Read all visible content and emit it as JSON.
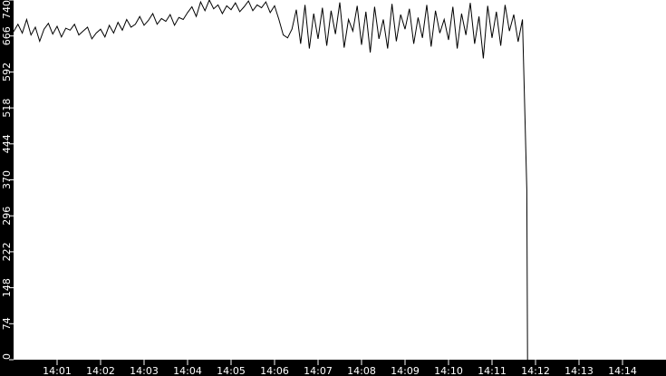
{
  "chart_data": {
    "type": "line",
    "title": "",
    "xlabel": "",
    "ylabel": "",
    "ylim": [
      0,
      740
    ],
    "xlim": [
      "14:00:00",
      "14:15:00"
    ],
    "grid": false,
    "colors": {
      "background": "#000000",
      "plot": "#ffffff",
      "line": "#000000",
      "axis_text": "#ffffff"
    },
    "y_ticks": [
      "0",
      "74",
      "148",
      "222",
      "296",
      "370",
      "444",
      "518",
      "592",
      "666",
      "740"
    ],
    "x_ticks": [
      "14:01",
      "14:02",
      "14:03",
      "14:04",
      "14:05",
      "14:06",
      "14:07",
      "14:08",
      "14:09",
      "14:10",
      "14:11",
      "14:12",
      "14:13",
      "14:14"
    ],
    "series": [
      {
        "x": [
          "14:00:00",
          "14:00:06",
          "14:00:12",
          "14:00:18",
          "14:00:24",
          "14:00:30",
          "14:00:36",
          "14:00:42",
          "14:00:48",
          "14:00:54",
          "14:01:00",
          "14:01:06",
          "14:01:12",
          "14:01:18",
          "14:01:24",
          "14:01:30",
          "14:01:36",
          "14:01:42",
          "14:01:48",
          "14:01:54",
          "14:02:00",
          "14:02:06",
          "14:02:12",
          "14:02:18",
          "14:02:24",
          "14:02:30",
          "14:02:36",
          "14:02:42",
          "14:02:48",
          "14:02:54",
          "14:03:00",
          "14:03:06",
          "14:03:12",
          "14:03:18",
          "14:03:24",
          "14:03:30",
          "14:03:36",
          "14:03:42",
          "14:03:48",
          "14:03:54",
          "14:04:00",
          "14:04:06",
          "14:04:12",
          "14:04:18",
          "14:04:24",
          "14:04:30",
          "14:04:36",
          "14:04:42",
          "14:04:48",
          "14:04:54",
          "14:05:00",
          "14:05:06",
          "14:05:12",
          "14:05:18",
          "14:05:24",
          "14:05:30",
          "14:05:36",
          "14:05:42",
          "14:05:48",
          "14:05:54",
          "14:06:00",
          "14:06:06",
          "14:06:12",
          "14:06:18",
          "14:06:24",
          "14:06:30",
          "14:06:36",
          "14:06:42",
          "14:06:48",
          "14:06:54",
          "14:07:00",
          "14:07:06",
          "14:07:12",
          "14:07:18",
          "14:07:24",
          "14:07:30",
          "14:07:36",
          "14:07:42",
          "14:07:48",
          "14:07:54",
          "14:08:00",
          "14:08:06",
          "14:08:12",
          "14:08:18",
          "14:08:24",
          "14:08:30",
          "14:08:36",
          "14:08:42",
          "14:08:48",
          "14:08:54",
          "14:09:00",
          "14:09:06",
          "14:09:12",
          "14:09:18",
          "14:09:24",
          "14:09:30",
          "14:09:36",
          "14:09:42",
          "14:09:48",
          "14:09:54",
          "14:10:00",
          "14:10:06",
          "14:10:12",
          "14:10:18",
          "14:10:24",
          "14:10:30",
          "14:10:36",
          "14:10:42",
          "14:10:48",
          "14:10:54",
          "14:11:00",
          "14:11:06",
          "14:11:12",
          "14:11:18",
          "14:11:24",
          "14:11:30",
          "14:11:36",
          "14:11:42",
          "14:11:48",
          "14:11:49"
        ],
        "values": [
          675,
          690,
          672,
          700,
          668,
          684,
          655,
          680,
          692,
          670,
          686,
          664,
          682,
          678,
          690,
          668,
          676,
          684,
          660,
          672,
          680,
          664,
          688,
          672,
          694,
          678,
          700,
          684,
          690,
          706,
          688,
          698,
          712,
          690,
          702,
          696,
          710,
          688,
          704,
          700,
          714,
          726,
          706,
          736,
          718,
          740,
          722,
          730,
          712,
          728,
          720,
          734,
          716,
          726,
          738,
          718,
          730,
          724,
          736,
          714,
          728,
          700,
          668,
          662,
          680,
          720,
          650,
          730,
          640,
          712,
          660,
          724,
          646,
          718,
          670,
          735,
          642,
          700,
          676,
          728,
          648,
          716,
          632,
          726,
          660,
          700,
          640,
          732,
          655,
          710,
          680,
          722,
          650,
          704,
          662,
          730,
          644,
          718,
          672,
          700,
          658,
          726,
          640,
          712,
          668,
          734,
          650,
          706,
          620,
          728,
          662,
          716,
          646,
          730,
          676,
          710,
          654,
          700,
          349,
          0
        ]
      }
    ]
  }
}
